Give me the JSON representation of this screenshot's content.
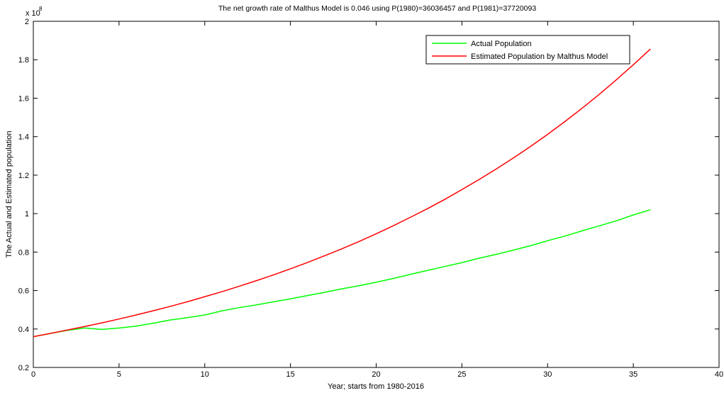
{
  "chart_data": {
    "type": "line",
    "title": "The net growth rate of Malthus Model is 0.046 using P(1980)=36036457 and P(1981)=37720093",
    "xlabel": "Year; starts from 1980-2016",
    "ylabel": "The Actual and Estimated population",
    "xlim": [
      0,
      40
    ],
    "ylim": [
      0.2,
      2
    ],
    "y_scale_note": "x 10",
    "y_scale_exponent": "8",
    "xticks": [
      0,
      5,
      10,
      15,
      20,
      25,
      30,
      35,
      40
    ],
    "yticks": [
      0.2,
      0.4,
      0.6,
      0.8,
      1,
      1.2,
      1.4,
      1.6,
      1.8,
      2
    ],
    "xtick_labels": [
      "0",
      "5",
      "10",
      "15",
      "20",
      "25",
      "30",
      "35",
      "40"
    ],
    "ytick_labels": [
      "0.2",
      "0.4",
      "0.6",
      "0.8",
      "1",
      "1.2",
      "1.4",
      "1.6",
      "1.8",
      "2"
    ],
    "grid": false,
    "legend_position": "top-right",
    "x": [
      0,
      1,
      2,
      3,
      4,
      5,
      6,
      7,
      8,
      9,
      10,
      11,
      12,
      13,
      14,
      15,
      16,
      17,
      18,
      19,
      20,
      21,
      22,
      23,
      24,
      25,
      26,
      27,
      28,
      29,
      30,
      31,
      32,
      33,
      34,
      35,
      36
    ],
    "series": [
      {
        "name": "Actual Population",
        "color": "#00ff00",
        "values": [
          0.36,
          0.377,
          0.393,
          0.405,
          0.398,
          0.405,
          0.415,
          0.43,
          0.447,
          0.459,
          0.473,
          0.494,
          0.511,
          0.525,
          0.541,
          0.557,
          0.574,
          0.591,
          0.609,
          0.625,
          0.643,
          0.663,
          0.684,
          0.705,
          0.725,
          0.745,
          0.768,
          0.788,
          0.81,
          0.833,
          0.859,
          0.883,
          0.91,
          0.936,
          0.962,
          0.993,
          1.02
        ]
      },
      {
        "name": "Estimated Population by Malthus Model",
        "color": "#ff0000",
        "values": [
          0.36,
          0.377,
          0.395,
          0.413,
          0.432,
          0.452,
          0.473,
          0.495,
          0.518,
          0.542,
          0.568,
          0.594,
          0.622,
          0.651,
          0.681,
          0.713,
          0.746,
          0.781,
          0.817,
          0.855,
          0.895,
          0.937,
          0.981,
          1.026,
          1.074,
          1.125,
          1.177,
          1.232,
          1.289,
          1.349,
          1.412,
          1.478,
          1.547,
          1.619,
          1.695,
          1.774,
          1.856
        ]
      }
    ]
  }
}
